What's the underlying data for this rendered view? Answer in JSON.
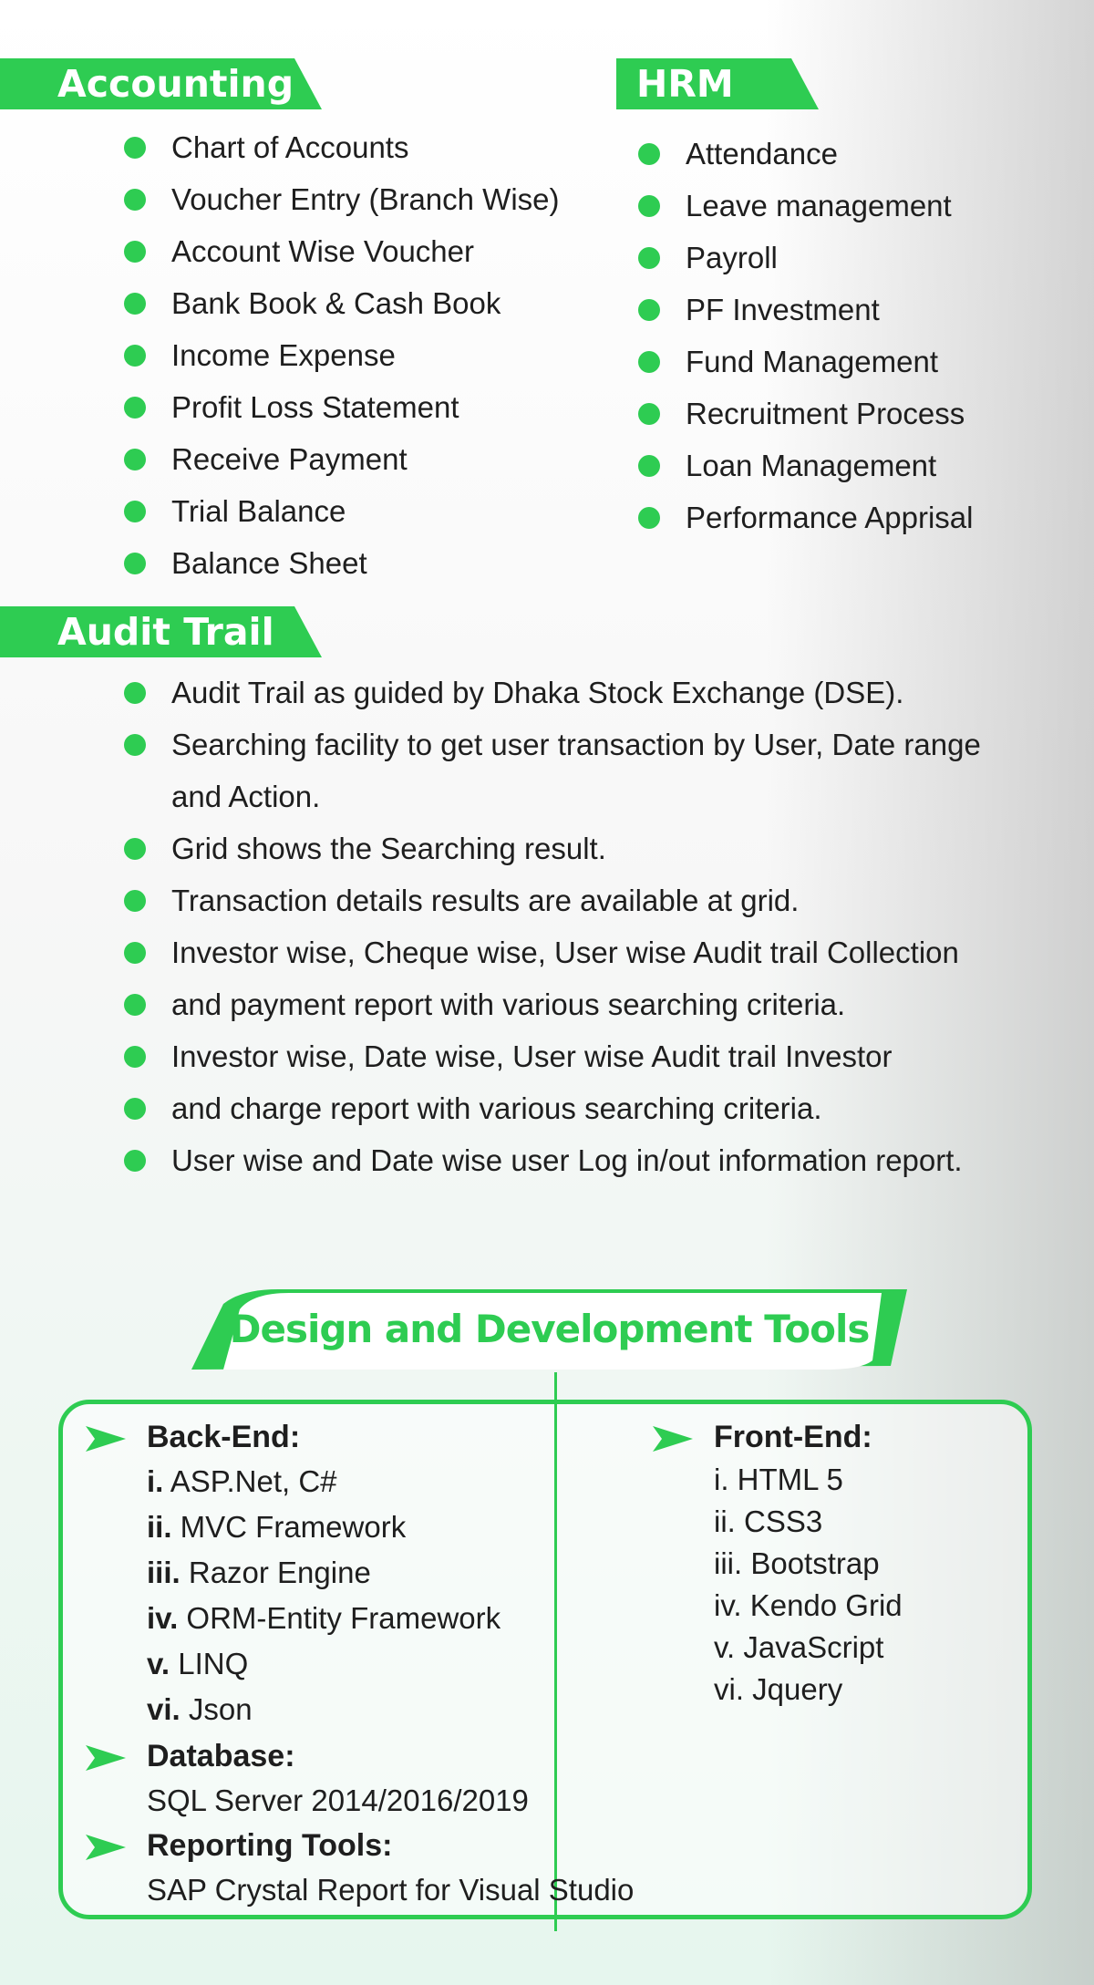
{
  "accounting": {
    "title": "Accounting",
    "items": [
      "Chart of Accounts",
      "Voucher Entry (Branch Wise)",
      "Account Wise Voucher",
      "Bank Book & Cash Book",
      "Income Expense",
      "Profit Loss Statement",
      "Receive Payment",
      "Trial Balance",
      "Balance Sheet"
    ]
  },
  "hrm": {
    "title": "HRM",
    "items": [
      "Attendance",
      "Leave management",
      "Payroll",
      "PF Investment",
      "Fund Management",
      "Recruitment Process",
      "Loan Management",
      "Performance Apprisal"
    ]
  },
  "audit": {
    "title": "Audit Trail",
    "items": [
      "Audit Trail as guided by Dhaka Stock Exchange (DSE).",
      "Searching  facility to get user transaction  by User, Date range and Action.",
      "Grid shows the Searching result.",
      "Transaction details results are available at grid.",
      "Investor wise, Cheque wise, User wise Audit trail Collection",
      "and payment report with various searching criteria.",
      "Investor wise, Date wise, User wise Audit trail Investor",
      "and charge report with various searching criteria.",
      "User wise  and Date wise user Log in/out information report."
    ]
  },
  "tools": {
    "title": "Design and Development Tools",
    "backend": {
      "heading": "Back-End:",
      "items": [
        {
          "num": "i.",
          "text": " ASP.Net, C#"
        },
        {
          "num": "ii.",
          "text": " MVC Framework"
        },
        {
          "num": "iii.",
          "text": " Razor Engine"
        },
        {
          "num": "iv.",
          "text": " ORM-Entity Framework"
        },
        {
          "num": "v.",
          "text": "  LINQ"
        },
        {
          "num": "vi.",
          "text": " Json"
        }
      ]
    },
    "database": {
      "heading": "Database:",
      "text": "SQL Server 2014/2016/2019"
    },
    "reporting": {
      "heading": "Reporting Tools:",
      "text": "SAP Crystal Report for Visual Studio"
    },
    "frontend": {
      "heading": "Front-End:",
      "items": [
        "i. HTML 5",
        "ii. CSS3",
        "iii. Bootstrap",
        "iv. Kendo Grid",
        "v. JavaScript",
        "vi. Jquery"
      ]
    }
  },
  "colors": {
    "accent": "#2ecc52",
    "text": "#1e1e1e"
  }
}
